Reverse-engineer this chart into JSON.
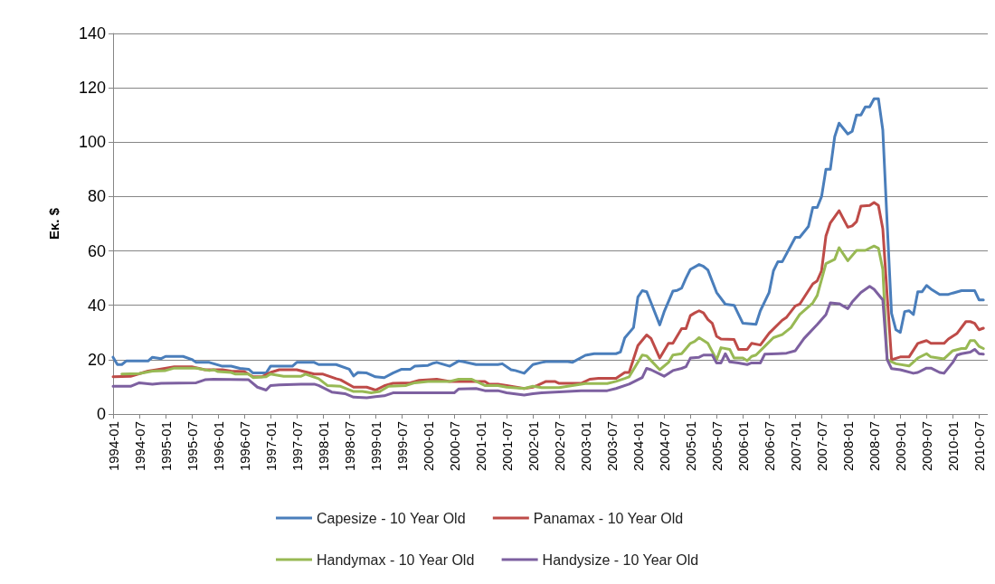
{
  "chart_data": {
    "type": "line",
    "ylabel": "Εκ. $",
    "ylim": [
      0,
      140
    ],
    "yticks": [
      0,
      20,
      40,
      60,
      80,
      100,
      120,
      140
    ],
    "xlim": [
      "1994-01",
      "2010-09"
    ],
    "xticks": [
      "1994-01",
      "1994-07",
      "1995-01",
      "1995-07",
      "1996-01",
      "1996-07",
      "1997-01",
      "1997-07",
      "1998-01",
      "1998-07",
      "1999-01",
      "1999-07",
      "2000-01",
      "2000-07",
      "2001-01",
      "2001-07",
      "2002-01",
      "2002-07",
      "2003-01",
      "2003-07",
      "2004-01",
      "2004-07",
      "2005-01",
      "2005-07",
      "2006-01",
      "2006-07",
      "2007-01",
      "2007-07",
      "2008-01",
      "2008-07",
      "2009-01",
      "2009-07",
      "2010-01",
      "2010-07"
    ],
    "grid": "y",
    "legend": "bottom",
    "marker": "none",
    "line_style": "solid",
    "series": [
      {
        "name": "Capesize - 10 Year Old",
        "color": "#4a7ebb",
        "x": [
          "1994-01",
          "1994-02",
          "1994-03",
          "1994-04",
          "1994-09",
          "1994-10",
          "1994-12",
          "1995-01",
          "1995-05",
          "1995-07",
          "1995-08",
          "1995-11",
          "1996-02",
          "1996-04",
          "1996-06",
          "1996-08",
          "1996-09",
          "1996-12",
          "1997-01",
          "1997-06",
          "1997-07",
          "1997-11",
          "1997-12",
          "1998-04",
          "1998-07",
          "1998-08",
          "1998-09",
          "1998-11",
          "1999-01",
          "1999-03",
          "1999-05",
          "1999-07",
          "1999-09",
          "1999-10",
          "2000-01",
          "2000-02",
          "2000-03",
          "2000-06",
          "2000-08",
          "2000-09",
          "2000-12",
          "2001-05",
          "2001-06",
          "2001-08",
          "2001-09",
          "2001-11",
          "2002-01",
          "2002-03",
          "2002-04",
          "2002-09",
          "2002-10",
          "2003-01",
          "2003-03",
          "2003-08",
          "2003-09",
          "2003-10",
          "2003-12",
          "2004-01",
          "2004-02",
          "2004-03",
          "2004-04",
          "2004-06",
          "2004-07",
          "2004-09",
          "2004-10",
          "2004-11",
          "2004-12",
          "2005-01",
          "2005-03",
          "2005-04",
          "2005-05",
          "2005-07",
          "2005-09",
          "2005-11",
          "2006-01",
          "2006-04",
          "2006-05",
          "2006-07",
          "2006-08",
          "2006-09",
          "2006-10",
          "2007-01",
          "2007-02",
          "2007-04",
          "2007-05",
          "2007-06",
          "2007-07",
          "2007-08",
          "2007-09",
          "2007-10",
          "2007-11",
          "2008-01",
          "2008-02",
          "2008-03",
          "2008-04",
          "2008-05",
          "2008-06",
          "2008-07",
          "2008-08",
          "2008-09",
          "2008-10",
          "2008-11",
          "2008-12",
          "2009-01",
          "2009-02",
          "2009-03",
          "2009-04",
          "2009-05",
          "2009-06",
          "2009-07",
          "2009-08",
          "2009-10",
          "2009-12",
          "2010-01",
          "2010-03",
          "2010-06",
          "2010-07",
          "2010-08"
        ],
        "values": [
          20.9,
          18.2,
          18.2,
          19.5,
          19.5,
          20.9,
          20.4,
          21.2,
          21.2,
          20.1,
          19,
          19,
          17.6,
          17.6,
          16.8,
          16.5,
          15.1,
          15.1,
          17.6,
          17.6,
          19,
          19,
          18.2,
          18.2,
          16.5,
          14,
          15.3,
          15.1,
          13.7,
          13.4,
          15.1,
          16.5,
          16.5,
          17.6,
          17.9,
          18.6,
          19,
          17.6,
          19.5,
          19.3,
          18.2,
          18.2,
          18.5,
          16.3,
          16,
          15,
          18.2,
          19,
          19.3,
          19.3,
          19,
          21.6,
          22.2,
          22.2,
          22.8,
          28,
          31.8,
          43,
          45.4,
          45,
          41,
          32.8,
          37.6,
          45.2,
          45.5,
          46.3,
          50,
          53.2,
          55,
          54.3,
          53,
          44.7,
          40.4,
          40,
          33.4,
          33,
          38,
          44.7,
          52.7,
          56,
          56,
          65,
          65,
          69,
          76,
          76,
          80,
          90,
          90,
          102,
          107,
          103,
          104,
          110,
          110,
          113,
          113,
          116,
          116,
          104.5,
          70,
          37,
          31,
          30,
          37.7,
          38,
          36.6,
          45,
          45,
          47.3,
          46,
          44,
          44,
          44.5,
          45.4,
          45.4,
          42,
          42
        ]
      },
      {
        "name": "Panamax - 10 Year Old",
        "color": "#be4b48",
        "x": [
          "1994-01",
          "1994-05",
          "1994-09",
          "1994-11",
          "1995-03",
          "1995-07",
          "1995-10",
          "1996-02",
          "1996-04",
          "1996-07",
          "1996-09",
          "1996-11",
          "1997-01",
          "1997-03",
          "1997-07",
          "1997-11",
          "1998-01",
          "1998-04",
          "1998-05",
          "1998-08",
          "1998-11",
          "1999-01",
          "1999-03",
          "1999-05",
          "1999-09",
          "1999-11",
          "2000-03",
          "2000-06",
          "2000-09",
          "2000-11",
          "2001-02",
          "2001-03",
          "2001-05",
          "2001-07",
          "2001-11",
          "2002-01",
          "2002-02",
          "2002-04",
          "2002-06",
          "2002-07",
          "2002-12",
          "2003-02",
          "2003-04",
          "2003-08",
          "2003-10",
          "2003-11",
          "2004-01",
          "2004-03",
          "2004-04",
          "2004-06",
          "2004-08",
          "2004-09",
          "2004-11",
          "2004-12",
          "2005-01",
          "2005-02",
          "2005-03",
          "2005-04",
          "2005-05",
          "2005-06",
          "2005-07",
          "2005-08",
          "2005-11",
          "2005-12",
          "2006-02",
          "2006-03",
          "2006-05",
          "2006-07",
          "2006-10",
          "2006-11",
          "2007-01",
          "2007-02",
          "2007-05",
          "2007-06",
          "2007-07",
          "2007-08",
          "2007-09",
          "2007-11",
          "2008-01",
          "2008-02",
          "2008-03",
          "2008-04",
          "2008-06",
          "2008-07",
          "2008-08",
          "2008-09",
          "2008-10",
          "2008-11",
          "2009-01",
          "2009-03",
          "2009-05",
          "2009-07",
          "2009-08",
          "2009-11",
          "2009-12",
          "2010-02",
          "2010-04",
          "2010-05",
          "2010-06",
          "2010-07",
          "2010-08"
        ],
        "values": [
          13.7,
          13.9,
          15.8,
          16.3,
          17.4,
          17.4,
          16.3,
          16.3,
          15.8,
          15.6,
          13.7,
          13.7,
          15.3,
          16.3,
          16.3,
          14.7,
          14.7,
          13,
          12.6,
          9.9,
          9.9,
          8.8,
          10.4,
          11.3,
          11.5,
          12.4,
          12.8,
          12,
          12,
          12,
          12,
          11,
          11,
          10.5,
          9.4,
          9.9,
          10.5,
          12,
          12,
          11.3,
          11.3,
          12.8,
          13.1,
          13.1,
          15.3,
          15.3,
          25.2,
          29.1,
          27.8,
          20.6,
          26,
          26,
          31.4,
          31.4,
          36.2,
          37.2,
          38,
          37.2,
          34.8,
          33.4,
          28.6,
          27.6,
          27.4,
          23.8,
          23.8,
          26,
          25.4,
          29.7,
          34.5,
          35.6,
          39.8,
          40.4,
          47.9,
          49,
          52.7,
          65.5,
          70.3,
          74.8,
          68.7,
          69.2,
          70.8,
          76.5,
          76.7,
          77.8,
          76.7,
          68.2,
          43.6,
          20,
          21,
          21,
          26,
          27,
          26,
          26,
          27.6,
          29.7,
          34,
          34,
          33.4,
          31,
          31.6
        ]
      },
      {
        "name": "Handymax - 10 Year Old",
        "color": "#98b954",
        "x": [
          "1994-03",
          "1994-07",
          "1994-10",
          "1995-01",
          "1995-03",
          "1995-08",
          "1995-11",
          "1995-12",
          "1996-01",
          "1996-04",
          "1996-05",
          "1996-08",
          "1996-09",
          "1996-12",
          "1997-01",
          "1997-04",
          "1997-08",
          "1997-09",
          "1997-12",
          "1998-02",
          "1998-05",
          "1998-08",
          "1998-10",
          "1998-12",
          "1999-02",
          "1999-04",
          "1999-08",
          "1999-10",
          "2000-01",
          "2000-06",
          "2000-08",
          "2000-11",
          "2001-02",
          "2001-05",
          "2001-07",
          "2001-11",
          "2002-01",
          "2002-03",
          "2002-07",
          "2002-10",
          "2003-01",
          "2003-06",
          "2003-08",
          "2003-10",
          "2003-11",
          "2004-02",
          "2004-03",
          "2004-06",
          "2004-08",
          "2004-09",
          "2004-11",
          "2005-01",
          "2005-02",
          "2005-03",
          "2005-05",
          "2005-07",
          "2005-08",
          "2005-10",
          "2005-11",
          "2006-01",
          "2006-02",
          "2006-03",
          "2006-04",
          "2006-06",
          "2006-08",
          "2006-10",
          "2006-12",
          "2007-02",
          "2007-05",
          "2007-06",
          "2007-08",
          "2007-10",
          "2007-11",
          "2008-01",
          "2008-03",
          "2008-05",
          "2008-07",
          "2008-08",
          "2008-09",
          "2008-10",
          "2008-12",
          "2009-03",
          "2009-05",
          "2009-07",
          "2009-08",
          "2009-11",
          "2010-01",
          "2010-03",
          "2010-04",
          "2010-05",
          "2010-06",
          "2010-07",
          "2010-08"
        ],
        "values": [
          14.7,
          14.9,
          15.8,
          16,
          16.9,
          16.9,
          16,
          16.3,
          15.6,
          15.3,
          14.7,
          14.7,
          13.4,
          13.7,
          14.7,
          13.9,
          13.9,
          14.7,
          13,
          10.5,
          10.2,
          8.3,
          8.3,
          7.8,
          8.3,
          10.2,
          10.5,
          11.5,
          12,
          12,
          12.8,
          12.8,
          10.5,
          10.5,
          9.9,
          9.4,
          10.2,
          9.7,
          9.7,
          10.5,
          11.2,
          11.2,
          12,
          13.1,
          13.7,
          21.7,
          21.4,
          16.3,
          19,
          21.7,
          22.2,
          26,
          26.7,
          28.1,
          26,
          20,
          24.4,
          23.8,
          20.6,
          20.6,
          19.6,
          21.2,
          21.7,
          24.9,
          28.1,
          29.2,
          31.8,
          36.6,
          40.9,
          43.6,
          55.3,
          56.9,
          61.2,
          56.4,
          60.2,
          60.2,
          61.8,
          61,
          53.2,
          20,
          18.5,
          17.7,
          20.6,
          22.2,
          21,
          20.3,
          23.3,
          24.1,
          24.1,
          27,
          27,
          24.9,
          24.1
        ]
      },
      {
        "name": "Handysize - 10 Year Old",
        "color": "#7d60a0",
        "x": [
          "1994-01",
          "1994-05",
          "1994-07",
          "1994-10",
          "1994-12",
          "1995-08",
          "1995-10",
          "1995-12",
          "1996-08",
          "1996-10",
          "1996-12",
          "1997-01",
          "1997-03",
          "1997-08",
          "1997-11",
          "1997-12",
          "1998-03",
          "1998-06",
          "1998-08",
          "1998-11",
          "1999-01",
          "1999-03",
          "1999-05",
          "2000-07",
          "2000-08",
          "2000-12",
          "2001-02",
          "2001-05",
          "2001-07",
          "2001-11",
          "2002-01",
          "2002-03",
          "2002-09",
          "2002-12",
          "2003-06",
          "2003-08",
          "2003-11",
          "2004-02",
          "2004-03",
          "2004-04",
          "2004-07",
          "2004-09",
          "2004-11",
          "2004-12",
          "2005-01",
          "2005-03",
          "2005-04",
          "2005-06",
          "2005-07",
          "2005-08",
          "2005-09",
          "2005-10",
          "2005-12",
          "2006-02",
          "2006-03",
          "2006-05",
          "2006-06",
          "2006-09",
          "2006-11",
          "2007-01",
          "2007-03",
          "2007-06",
          "2007-08",
          "2007-09",
          "2007-11",
          "2008-01",
          "2008-02",
          "2008-04",
          "2008-06",
          "2008-07",
          "2008-09",
          "2008-10",
          "2008-11",
          "2009-01",
          "2009-04",
          "2009-05",
          "2009-07",
          "2009-08",
          "2009-10",
          "2009-11",
          "2010-01",
          "2010-02",
          "2010-03",
          "2010-05",
          "2010-06",
          "2010-07",
          "2010-08"
        ],
        "values": [
          10.2,
          10.2,
          11.5,
          11,
          11.3,
          11.5,
          12.6,
          12.8,
          12.6,
          9.9,
          8.8,
          10.5,
          10.7,
          11,
          11,
          10.5,
          8.1,
          7.5,
          6.2,
          6,
          6.4,
          6.7,
          7.8,
          7.8,
          9.2,
          9.4,
          8.6,
          8.6,
          7.8,
          7,
          7.5,
          7.8,
          8.3,
          8.6,
          8.6,
          9.4,
          11,
          13.4,
          16.8,
          16.3,
          13.9,
          16,
          16.8,
          17.4,
          20.6,
          20.9,
          21.7,
          21.7,
          18.8,
          18.8,
          22.2,
          19.2,
          18.8,
          18.2,
          18.8,
          18.8,
          22,
          22.2,
          22.4,
          23.3,
          27.8,
          32.9,
          36.6,
          40.9,
          40.6,
          38.8,
          41.2,
          44.7,
          47,
          45.9,
          42,
          20,
          16.7,
          16.3,
          15,
          15.3,
          16.9,
          16.9,
          15.3,
          15,
          19,
          21.7,
          22.2,
          22.8,
          23.8,
          22.2,
          22
        ]
      }
    ]
  }
}
